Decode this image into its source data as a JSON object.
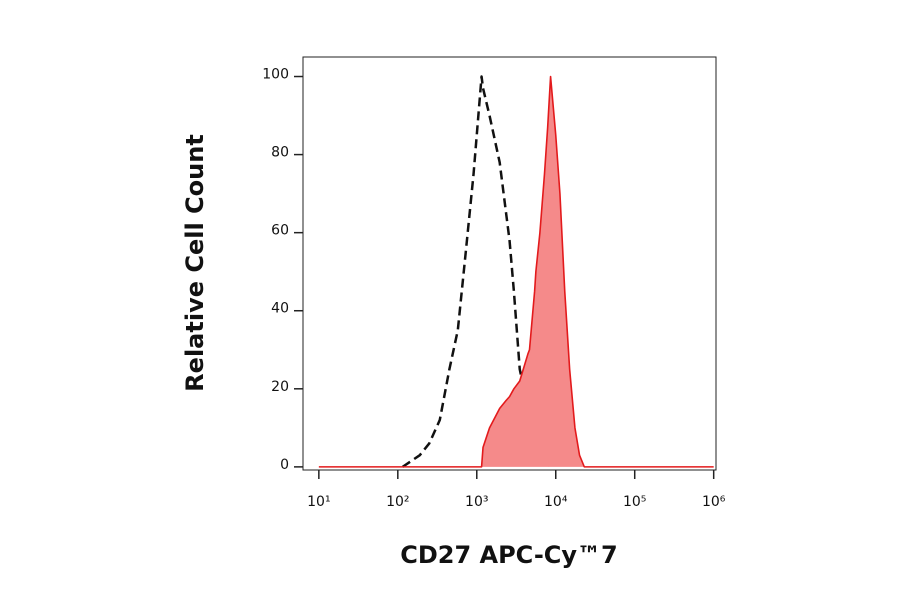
{
  "chart_data": {
    "type": "histogram-overlay",
    "xlabel": "CD27 APC-Cy™7",
    "ylabel": "Relative Cell Count",
    "xscale": "log",
    "xlim": [
      6.3,
      1070000
    ],
    "ylim": [
      -0.8,
      105
    ],
    "xticks": [
      {
        "value": 10,
        "label": "10¹"
      },
      {
        "value": 100,
        "label": "10²"
      },
      {
        "value": 1000,
        "label": "10³"
      },
      {
        "value": 10000,
        "label": "10⁴"
      },
      {
        "value": 100000,
        "label": "10⁵"
      },
      {
        "value": 1000000,
        "label": "10⁶"
      }
    ],
    "yticks": [
      0,
      20,
      40,
      60,
      80,
      100
    ],
    "x": [
      10,
      100,
      115,
      190,
      250,
      340,
      450,
      575,
      725,
      910,
      1150,
      1200,
      1450,
      1950,
      2350,
      2600,
      2950,
      3500,
      4450,
      4650,
      5400,
      5600,
      6300,
      7200,
      7900,
      8600,
      10000,
      11300,
      13000,
      15000,
      17500,
      20000,
      23000,
      100000,
      1000000
    ],
    "series": [
      {
        "color": "#111111",
        "line_style": "dashed",
        "filled": false,
        "values": [
          null,
          null,
          0,
          3,
          6,
          12,
          25,
          35,
          55,
          75,
          100,
          97,
          90,
          78,
          65,
          58,
          45,
          25,
          15,
          13,
          6,
          5,
          3,
          2,
          1,
          0,
          null,
          null,
          null,
          null,
          null,
          null,
          null,
          null,
          null
        ]
      },
      {
        "color": "#e31a1c",
        "fill_color": "#f58a8a",
        "line_style": "solid",
        "filled": true,
        "values": [
          0,
          0,
          0,
          0,
          0,
          0,
          0,
          0,
          0,
          0,
          0,
          5,
          10,
          15,
          17,
          18,
          20,
          22,
          29,
          30,
          45,
          50,
          60,
          75,
          87,
          100,
          85,
          70,
          45,
          25,
          10,
          3,
          0,
          0,
          0
        ]
      }
    ]
  }
}
